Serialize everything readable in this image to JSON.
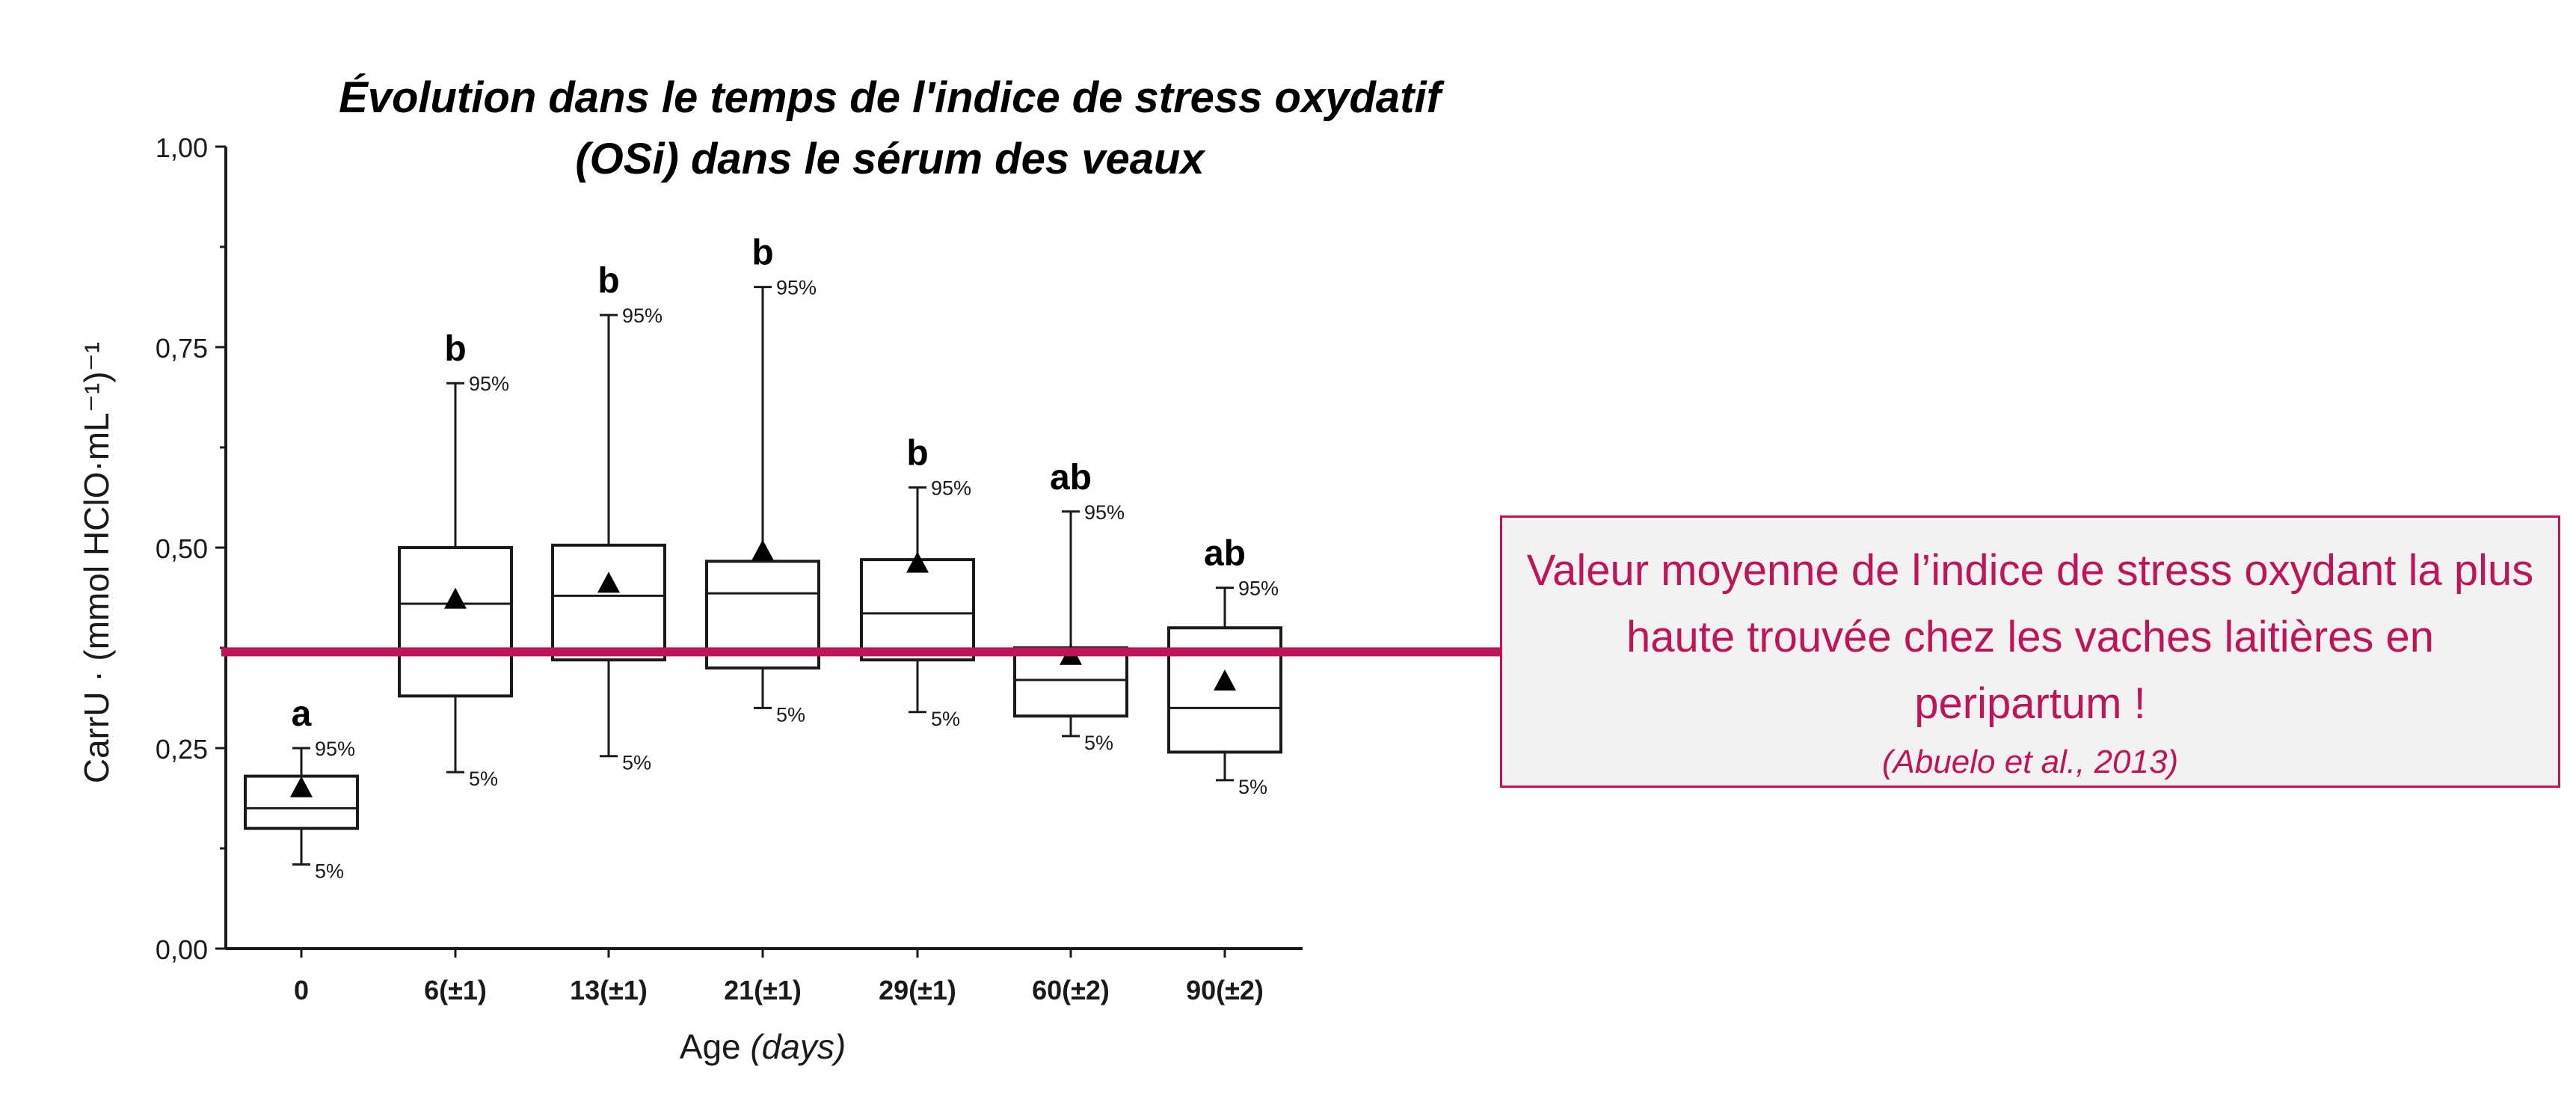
{
  "chart_data": {
    "type": "box",
    "title": "Évolution dans le temps de l'indice de stress oxydatif (OSi) dans le sérum des veaux",
    "title_lines": [
      "Évolution dans le temps de l'indice de stress oxydatif",
      "(OSi) dans le sérum des veaux"
    ],
    "xlabel": "Age",
    "xlabel_unit": "(days)",
    "ylabel": "CarrU · (mmol HClO·mL⁻¹)⁻¹",
    "ylim": [
      0,
      1
    ],
    "yticks": [
      "0,00",
      "0,25",
      "0,50",
      "0,75",
      "1,00"
    ],
    "ytick_values": [
      0,
      0.25,
      0.5,
      0.75,
      1.0
    ],
    "categories": [
      "0",
      "6(±1)",
      "13(±1)",
      "21(±1)",
      "29(±1)",
      "60(±2)",
      "90(±2)"
    ],
    "boxes": [
      {
        "p5": 0.105,
        "q1": 0.15,
        "median": 0.175,
        "q3": 0.215,
        "p95": 0.25,
        "mean": 0.2,
        "letter": "a"
      },
      {
        "p5": 0.22,
        "q1": 0.315,
        "median": 0.43,
        "q3": 0.5,
        "p95": 0.705,
        "mean": 0.435,
        "letter": "b"
      },
      {
        "p5": 0.24,
        "q1": 0.36,
        "median": 0.44,
        "q3": 0.503,
        "p95": 0.79,
        "mean": 0.455,
        "letter": "b"
      },
      {
        "p5": 0.3,
        "q1": 0.35,
        "median": 0.443,
        "q3": 0.483,
        "p95": 0.825,
        "mean": 0.495,
        "letter": "b"
      },
      {
        "p5": 0.295,
        "q1": 0.36,
        "median": 0.418,
        "q3": 0.485,
        "p95": 0.575,
        "mean": 0.48,
        "letter": "b"
      },
      {
        "p5": 0.265,
        "q1": 0.29,
        "median": 0.335,
        "q3": 0.375,
        "p95": 0.545,
        "mean": 0.365,
        "letter": "ab"
      },
      {
        "p5": 0.21,
        "q1": 0.245,
        "median": 0.3,
        "q3": 0.4,
        "p95": 0.45,
        "mean": 0.333,
        "letter": "ab"
      }
    ],
    "whisker_top_label": "95%",
    "whisker_bottom_label": "5%",
    "reference_line": {
      "value": 0.37,
      "color": "#c0145a"
    },
    "grid": false
  },
  "callout": {
    "text": "Valeur moyenne de l’indice de stress oxydant la plus haute trouvée chez les vaches laitières en peripartum !",
    "citation": "(Abuelo et al., 2013)",
    "color": "#c0145a"
  }
}
